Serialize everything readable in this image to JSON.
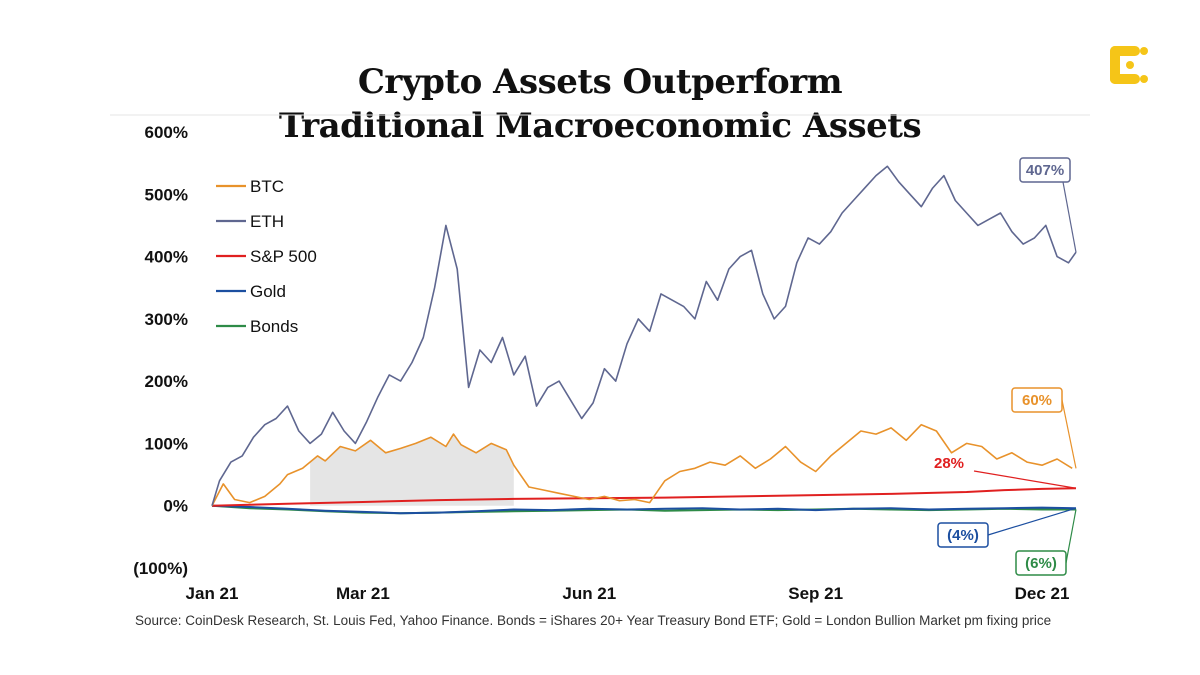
{
  "title": {
    "line1": "Crypto Assets Outperform",
    "line2": "Traditional Macroeconomic Assets"
  },
  "logo": {
    "icon": "coindesk-logo-icon",
    "color": "#F5C518"
  },
  "source_note": "Source: CoinDesk Research, St. Louis Fed, Yahoo Finance. Bonds = iShares 20+ Year Treasury Bond ETF; Gold = London Bullion Market pm fixing price",
  "chart_data": {
    "type": "line",
    "title": "Crypto Assets Outperform Traditional Macroeconomic Assets",
    "xlabel": "",
    "ylabel": "",
    "ylim": [
      -100,
      600
    ],
    "y_ticks": [
      {
        "value": 600,
        "label": "600%"
      },
      {
        "value": 500,
        "label": "500%"
      },
      {
        "value": 400,
        "label": "400%"
      },
      {
        "value": 300,
        "label": "300%"
      },
      {
        "value": 200,
        "label": "200%"
      },
      {
        "value": 100,
        "label": "100%"
      },
      {
        "value": 0,
        "label": "0%"
      },
      {
        "value": -100,
        "label": "(100%)"
      }
    ],
    "x_ticks": [
      {
        "value": 0,
        "label": "Jan 21"
      },
      {
        "value": 2,
        "label": "Mar 21"
      },
      {
        "value": 5,
        "label": "Jun 21"
      },
      {
        "value": 8,
        "label": "Sep 21"
      },
      {
        "value": 11,
        "label": "Dec 21"
      }
    ],
    "legend_position": "top-left",
    "series": [
      {
        "name": "BTC",
        "color": "#E8922B",
        "x": [
          0,
          0.15,
          0.3,
          0.5,
          0.7,
          0.9,
          1.0,
          1.2,
          1.4,
          1.5,
          1.7,
          1.9,
          2.1,
          2.3,
          2.5,
          2.7,
          2.9,
          3.1,
          3.2,
          3.3,
          3.5,
          3.7,
          3.9,
          4.0,
          4.2,
          4.4,
          4.6,
          4.8,
          5.0,
          5.2,
          5.4,
          5.6,
          5.8,
          6.0,
          6.2,
          6.4,
          6.6,
          6.8,
          7.0,
          7.2,
          7.4,
          7.6,
          7.8,
          8.0,
          8.2,
          8.4,
          8.6,
          8.8,
          9.0,
          9.2,
          9.4,
          9.6,
          9.8,
          10.0,
          10.2,
          10.4,
          10.6,
          10.8,
          11.0,
          11.2,
          11.4
        ],
        "values": [
          0,
          35,
          10,
          5,
          15,
          35,
          50,
          60,
          80,
          72,
          95,
          88,
          105,
          85,
          92,
          100,
          110,
          95,
          115,
          98,
          85,
          100,
          90,
          65,
          30,
          25,
          20,
          15,
          10,
          15,
          8,
          10,
          5,
          40,
          55,
          60,
          70,
          65,
          80,
          60,
          75,
          95,
          70,
          55,
          80,
          100,
          120,
          115,
          125,
          105,
          130,
          120,
          85,
          100,
          95,
          75,
          85,
          70,
          65,
          75,
          60
        ]
      },
      {
        "name": "ETH",
        "color": "#5F6790",
        "x": [
          0,
          0.1,
          0.25,
          0.4,
          0.55,
          0.7,
          0.85,
          1.0,
          1.15,
          1.3,
          1.45,
          1.6,
          1.75,
          1.9,
          2.05,
          2.2,
          2.35,
          2.5,
          2.65,
          2.8,
          2.95,
          3.1,
          3.25,
          3.4,
          3.55,
          3.7,
          3.85,
          4.0,
          4.15,
          4.3,
          4.45,
          4.6,
          4.75,
          4.9,
          5.05,
          5.2,
          5.35,
          5.5,
          5.65,
          5.8,
          5.95,
          6.1,
          6.25,
          6.4,
          6.55,
          6.7,
          6.85,
          7.0,
          7.15,
          7.3,
          7.45,
          7.6,
          7.75,
          7.9,
          8.05,
          8.2,
          8.35,
          8.5,
          8.65,
          8.8,
          8.95,
          9.1,
          9.25,
          9.4,
          9.55,
          9.7,
          9.85,
          10.0,
          10.15,
          10.3,
          10.45,
          10.6,
          10.75,
          10.9,
          11.05,
          11.2,
          11.35,
          11.45
        ],
        "values": [
          0,
          40,
          70,
          80,
          110,
          130,
          140,
          160,
          120,
          100,
          115,
          150,
          120,
          100,
          135,
          175,
          210,
          200,
          230,
          270,
          350,
          450,
          380,
          190,
          250,
          230,
          270,
          210,
          240,
          160,
          190,
          200,
          170,
          140,
          165,
          220,
          200,
          260,
          300,
          280,
          340,
          330,
          320,
          300,
          360,
          330,
          380,
          400,
          410,
          340,
          300,
          320,
          390,
          430,
          420,
          440,
          470,
          490,
          510,
          530,
          545,
          520,
          500,
          480,
          510,
          530,
          490,
          470,
          450,
          460,
          470,
          440,
          420,
          430,
          450,
          400,
          390,
          407
        ]
      },
      {
        "name": "S&P 500",
        "color": "#E02020",
        "x": [
          0,
          1,
          2,
          3,
          4,
          5,
          6,
          7,
          8,
          9,
          10,
          10.5,
          11,
          11.45
        ],
        "values": [
          0,
          3,
          6,
          9,
          11,
          12,
          13,
          15,
          17,
          19,
          22,
          25,
          27,
          28
        ]
      },
      {
        "name": "Gold",
        "color": "#1C4FA0",
        "x": [
          0,
          0.5,
          1,
          1.5,
          2,
          2.5,
          3,
          3.5,
          4,
          4.5,
          5,
          5.5,
          6,
          6.5,
          7,
          7.5,
          8,
          8.5,
          9,
          9.5,
          10,
          10.5,
          11,
          11.45
        ],
        "values": [
          0,
          -2,
          -5,
          -8,
          -10,
          -12,
          -11,
          -9,
          -6,
          -7,
          -5,
          -6,
          -5,
          -4,
          -6,
          -5,
          -7,
          -5,
          -4,
          -6,
          -5,
          -4,
          -3,
          -4
        ]
      },
      {
        "name": "Bonds",
        "color": "#2E8B47",
        "x": [
          0,
          0.5,
          1,
          1.5,
          2,
          2.5,
          3,
          3.5,
          4,
          4.5,
          5,
          5.5,
          6,
          6.5,
          7,
          7.5,
          8,
          8.5,
          9,
          9.5,
          10,
          10.5,
          11,
          11.45
        ],
        "values": [
          0,
          -4,
          -6,
          -9,
          -11,
          -12,
          -11,
          -10,
          -9,
          -8,
          -7,
          -6,
          -8,
          -7,
          -6,
          -7,
          -6,
          -5,
          -6,
          -7,
          -6,
          -5,
          -6,
          -6
        ]
      }
    ],
    "annotations": [
      {
        "series": "ETH",
        "label": "407%",
        "color": "#5F6790"
      },
      {
        "series": "BTC",
        "label": "60%",
        "color": "#E8922B"
      },
      {
        "series": "S&P 500",
        "label": "28%",
        "color": "#E02020"
      },
      {
        "series": "Gold",
        "label": "(4%)",
        "color": "#1C4FA0"
      },
      {
        "series": "Bonds",
        "label": "(6%)",
        "color": "#2E8B47"
      }
    ],
    "shaded_region": {
      "series": "BTC",
      "x_start": 1.3,
      "x_end": 4.0,
      "color": "#E5E5E5"
    }
  }
}
